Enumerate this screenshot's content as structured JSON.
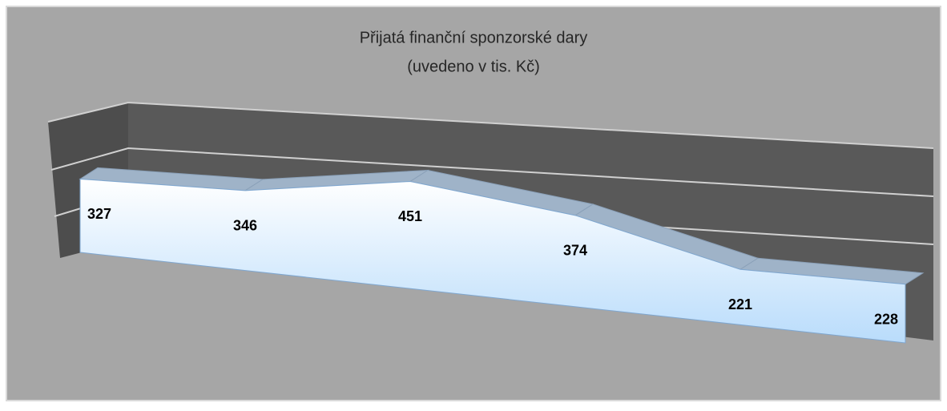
{
  "chart_data": {
    "type": "area3d",
    "title": [
      "Přijatá finanční sponzorské dary",
      "(uvedeno v tis. Kč)"
    ],
    "categories": [
      null,
      null,
      null,
      null,
      null,
      null
    ],
    "values": [
      327,
      346,
      451,
      374,
      221,
      228
    ],
    "color": "#d6e9fb",
    "ylim": [
      0,
      500
    ]
  }
}
